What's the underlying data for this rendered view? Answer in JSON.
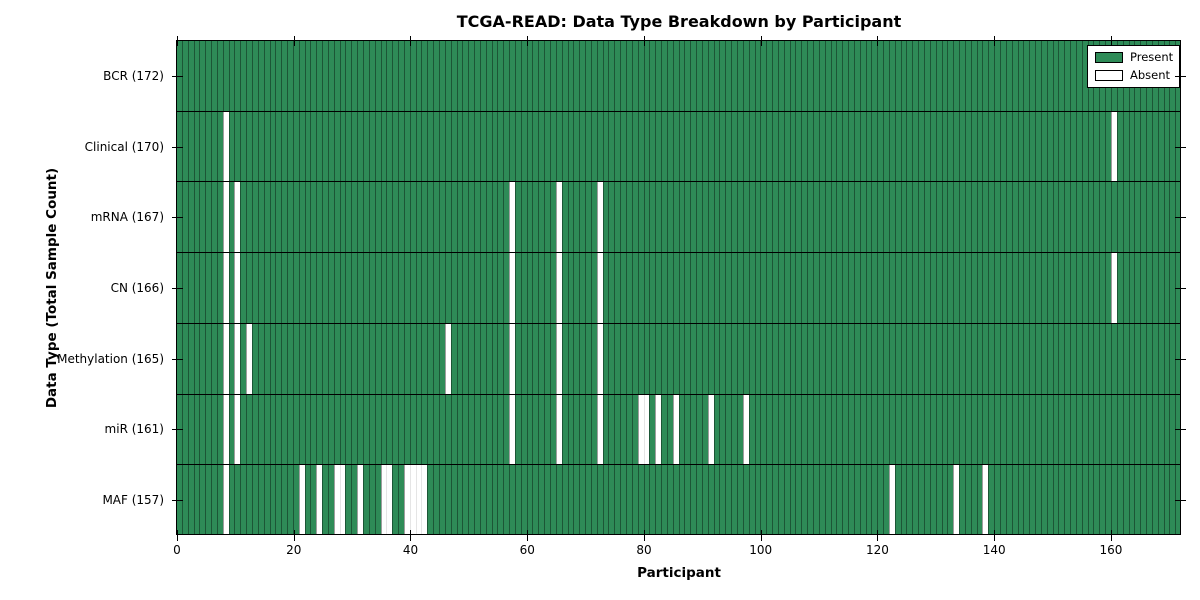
{
  "chart_data": {
    "type": "heatmap",
    "title": "TCGA-READ: Data Type Breakdown by Participant",
    "xlabel": "Participant",
    "ylabel": "Data Type (Total Sample Count)",
    "x_ticks": [
      0,
      20,
      40,
      60,
      80,
      100,
      120,
      140,
      160
    ],
    "x_range": [
      0,
      172
    ],
    "n_participants": 172,
    "grid": "cell-borders",
    "legend_position": "upper-right",
    "legend": [
      {
        "label": "Present",
        "color": "#2e8b57"
      },
      {
        "label": "Absent",
        "color": "#ffffff"
      }
    ],
    "rows": [
      {
        "label": "BCR (172)",
        "data_type": "BCR",
        "total": 172,
        "absent_participants": []
      },
      {
        "label": "Clinical (170)",
        "data_type": "Clinical",
        "total": 170,
        "absent_participants": [
          8,
          160
        ]
      },
      {
        "label": "mRNA (167)",
        "data_type": "mRNA",
        "total": 167,
        "absent_participants": [
          8,
          10,
          57,
          65,
          72
        ]
      },
      {
        "label": "CN (166)",
        "data_type": "CN",
        "total": 166,
        "absent_participants": [
          8,
          10,
          57,
          65,
          72,
          160
        ]
      },
      {
        "label": "Methylation (165)",
        "data_type": "Methylation",
        "total": 165,
        "absent_participants": [
          8,
          10,
          12,
          46,
          57,
          65,
          72
        ]
      },
      {
        "label": "miR (161)",
        "data_type": "miR",
        "total": 161,
        "absent_participants": [
          8,
          10,
          57,
          65,
          72,
          79,
          80,
          82,
          85,
          91,
          97
        ]
      },
      {
        "label": "MAF (157)",
        "data_type": "MAF",
        "total": 157,
        "absent_participants": [
          8,
          21,
          24,
          27,
          28,
          31,
          35,
          36,
          39,
          40,
          41,
          42,
          122,
          133,
          138
        ]
      }
    ]
  }
}
